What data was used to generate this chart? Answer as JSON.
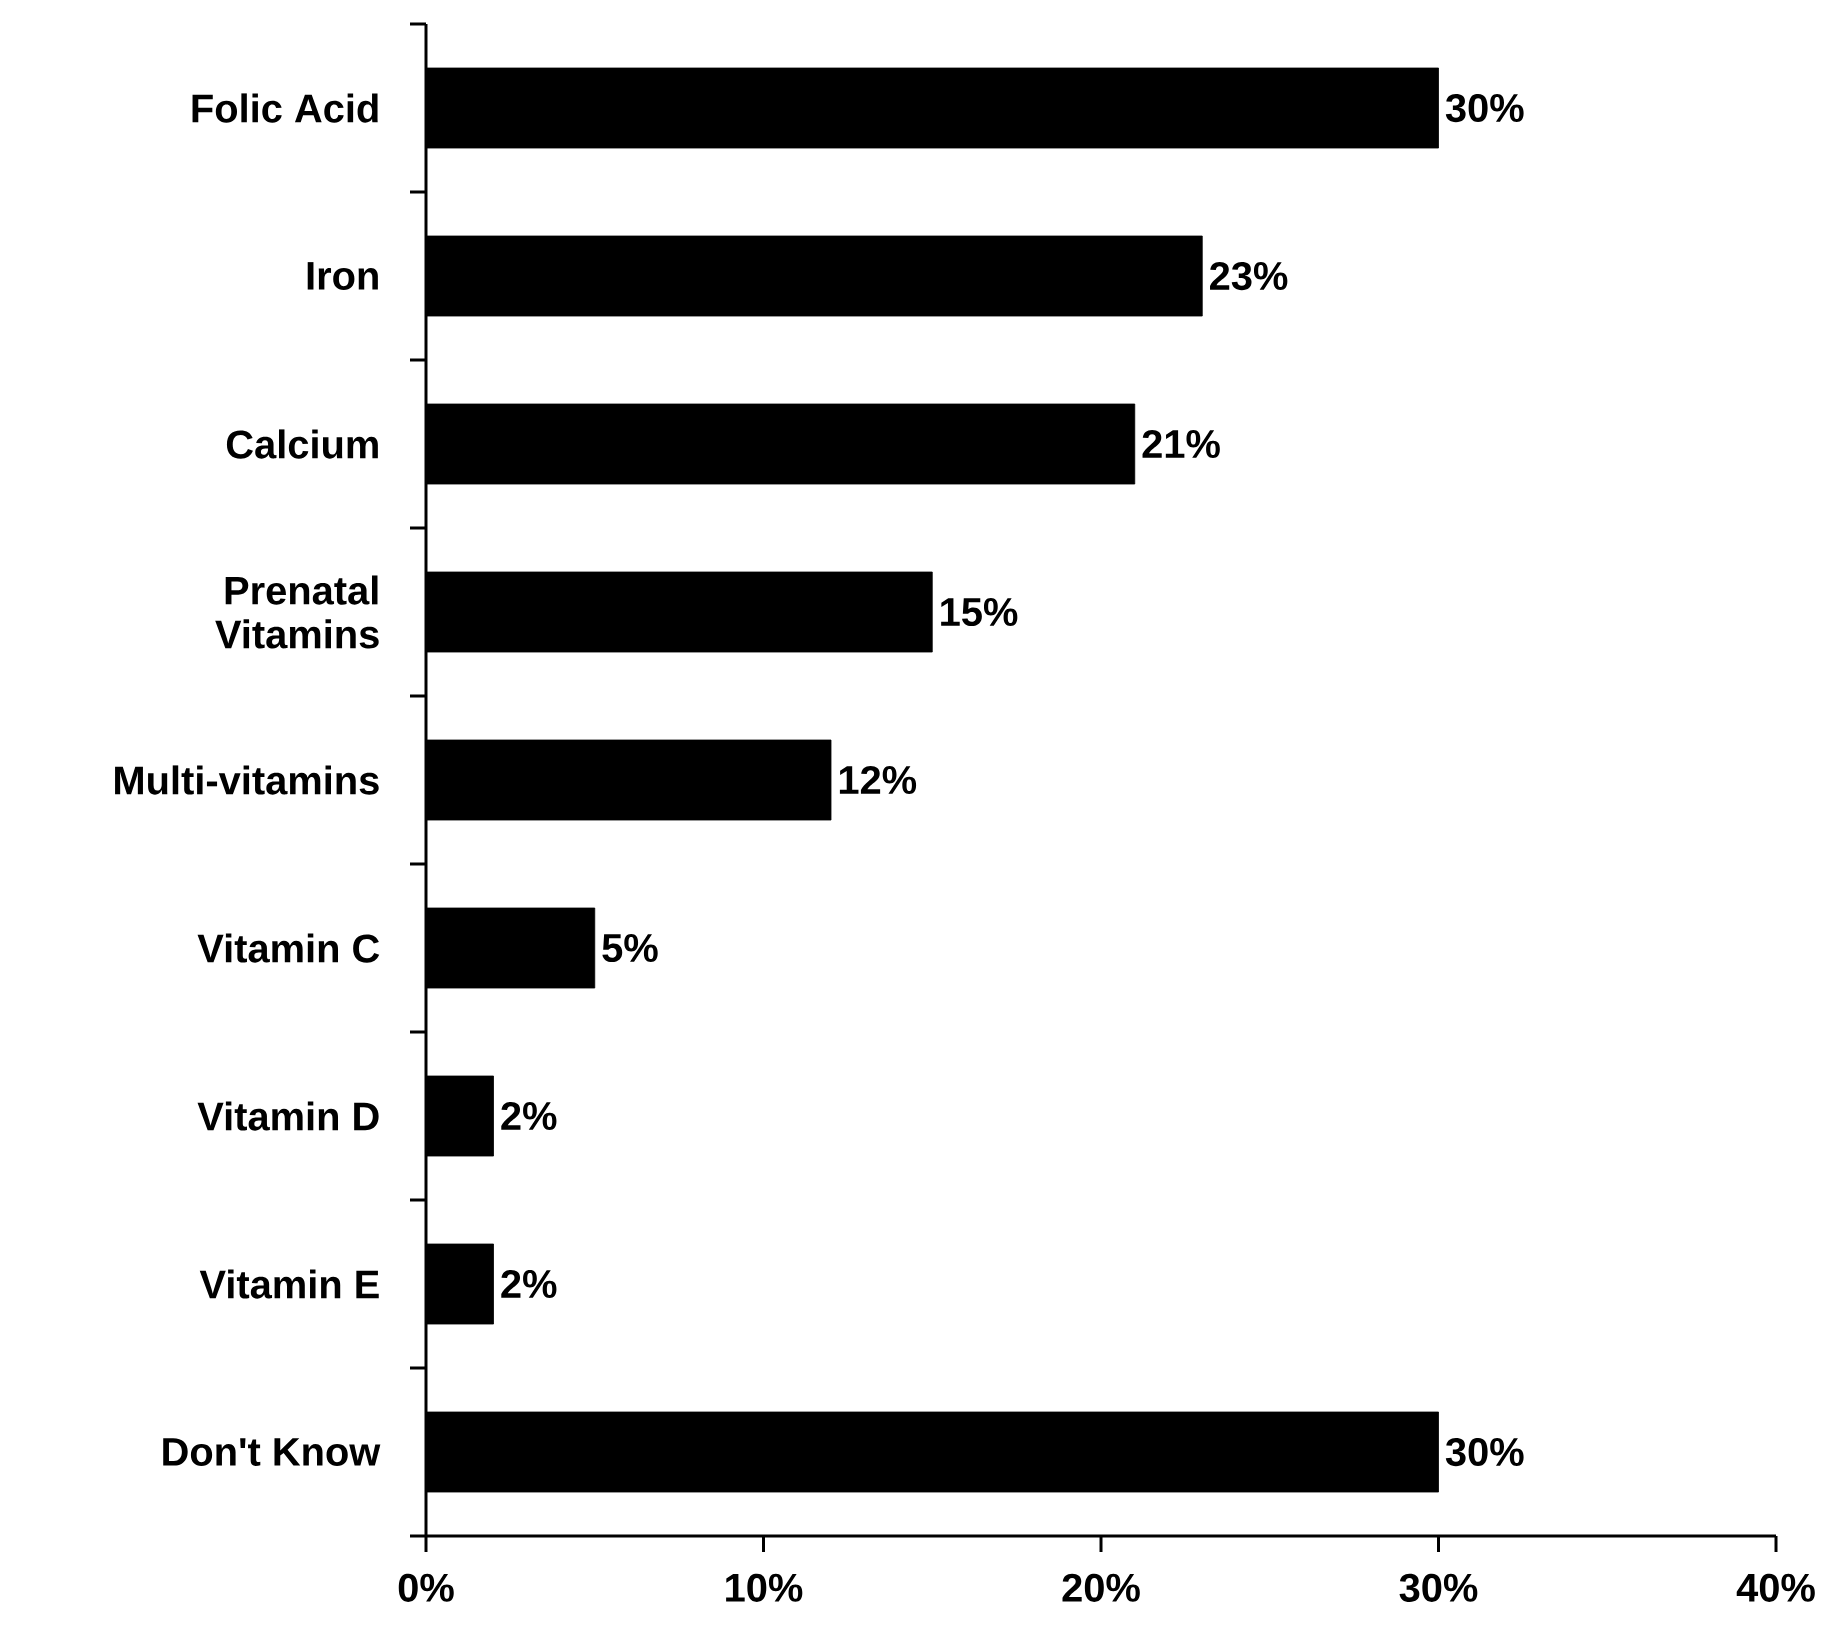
{
  "chart_data": {
    "type": "bar",
    "orientation": "horizontal",
    "categories": [
      "Folic Acid",
      "Iron",
      "Calcium",
      "Prenatal Vitamins",
      "Multi-vitamins",
      "Vitamin C",
      "Vitamin D",
      "Vitamin E",
      "Don't Know"
    ],
    "values": [
      30,
      23,
      21,
      15,
      12,
      5,
      2,
      2,
      30
    ],
    "value_labels": [
      "30%",
      "23%",
      "21%",
      "15%",
      "12%",
      "5%",
      "2%",
      "2%",
      "30%"
    ],
    "color": "#000000",
    "xlim": [
      0,
      40
    ],
    "xticks": [
      {
        "value": 0,
        "label": "0%"
      },
      {
        "value": 10,
        "label": "10%"
      },
      {
        "value": 20,
        "label": "20%"
      },
      {
        "value": 30,
        "label": "30%"
      },
      {
        "value": 40,
        "label": "40%"
      }
    ],
    "grid": false
  }
}
